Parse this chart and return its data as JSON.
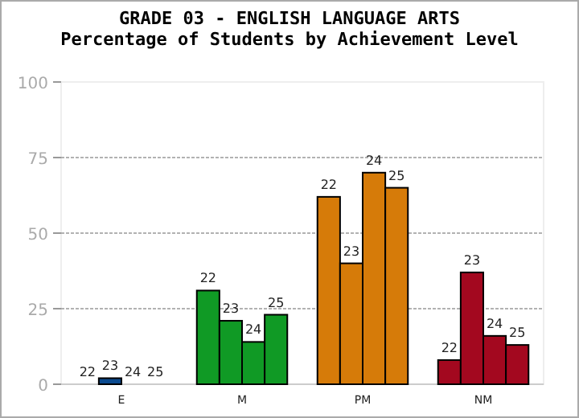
{
  "chart_data": {
    "type": "bar",
    "title": "GRADE 03 - ENGLISH LANGUAGE ARTS",
    "subtitle": "Percentage of Students by Achievement Level",
    "categories": [
      "E",
      "M",
      "PM",
      "NM"
    ],
    "series": [
      {
        "name": "22",
        "colors": [
          "#0b4a8f",
          "#109a25",
          "#d67b09",
          "#a3081f"
        ],
        "values": [
          0,
          31,
          62,
          8
        ]
      },
      {
        "name": "23",
        "colors": [
          "#0b4a8f",
          "#109a25",
          "#d67b09",
          "#a3081f"
        ],
        "values": [
          2,
          21,
          40,
          37
        ]
      },
      {
        "name": "24",
        "colors": [
          "#0b4a8f",
          "#109a25",
          "#d67b09",
          "#a3081f"
        ],
        "values": [
          0,
          14,
          70,
          16
        ]
      },
      {
        "name": "25",
        "colors": [
          "#0b4a8f",
          "#109a25",
          "#d67b09",
          "#a3081f"
        ],
        "values": [
          0,
          23,
          65,
          13
        ]
      }
    ],
    "ylim": [
      0,
      100
    ],
    "yticks": [
      0,
      25,
      50,
      75,
      100
    ],
    "grid": "y"
  }
}
